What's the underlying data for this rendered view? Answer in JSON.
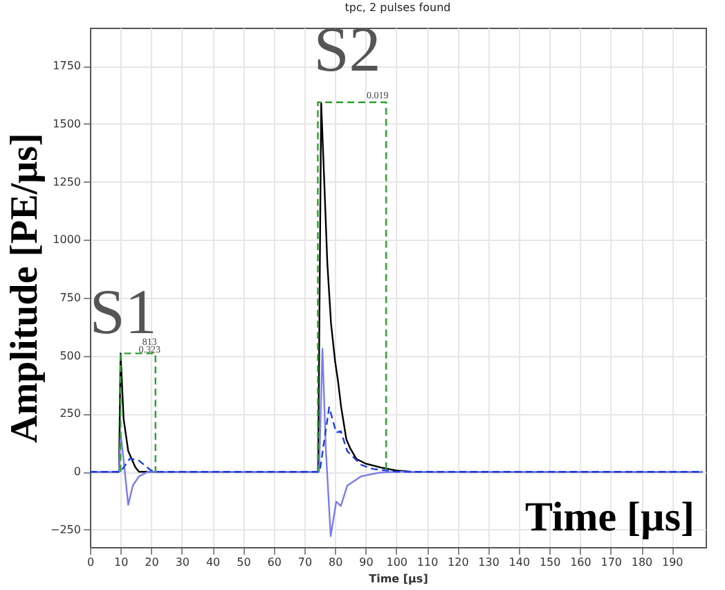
{
  "chart_data": {
    "type": "line",
    "title": "tpc, 2 pulses found",
    "xlabel": "Time [µs]",
    "ylabel": "Amplitude [PE/µs]",
    "xlim": [
      0,
      201
    ],
    "ylim": [
      -325,
      1915
    ],
    "xticks": [
      0,
      10,
      20,
      30,
      40,
      50,
      60,
      70,
      80,
      90,
      100,
      110,
      120,
      130,
      140,
      150,
      160,
      170,
      180,
      190
    ],
    "yticks": [
      -250,
      0,
      250,
      500,
      750,
      1000,
      1250,
      1500,
      1750
    ],
    "grid": true,
    "series": [
      {
        "color": "#000000",
        "x": [
          0,
          9.5,
          10,
          11,
          12.5,
          14.8,
          16,
          74.5,
          75.5,
          76.5,
          77.5,
          78.7,
          80,
          81,
          82,
          83.7,
          85,
          87,
          90,
          95,
          100,
          105,
          200
        ],
        "values": [
          0,
          0,
          510,
          228,
          89,
          20,
          0,
          0,
          1590,
          1250,
          900,
          640,
          480,
          390,
          280,
          140,
          100,
          55,
          35,
          18,
          5,
          0,
          0
        ]
      },
      {
        "color": "#7b7bf0",
        "x": [
          0,
          9.5,
          10,
          11,
          12.5,
          14,
          16,
          19,
          74.8,
          75.9,
          77,
          78.6,
          80.4,
          81.9,
          84,
          88.5,
          94.5,
          100,
          200
        ],
        "values": [
          0,
          0,
          167,
          50,
          -143,
          -60,
          -20,
          0,
          0,
          530,
          100,
          -278,
          -129,
          -148,
          -60,
          -20,
          -4,
          0,
          0
        ]
      },
      {
        "color": "#1f3fdf",
        "line_style": "dashed",
        "x": [
          0,
          10,
          13,
          15.8,
          20,
          22,
          75,
          78.1,
          80.4,
          81.9,
          84,
          88.5,
          92.3,
          100,
          200
        ],
        "values": [
          0,
          0,
          56,
          50,
          5,
          0,
          0,
          278,
          169,
          175,
          89,
          30,
          12,
          0,
          0
        ]
      },
      {
        "color": "#2ca02c",
        "line_style": "dashed",
        "x": [
          10,
          10,
          21.4,
          21.4
        ],
        "values": [
          0,
          510,
          510,
          0
        ]
      },
      {
        "color": "#2ca02c",
        "line_style": "dashed",
        "x": [
          74.4,
          74.4,
          96.7,
          96.7
        ],
        "values": [
          0,
          1593,
          1593,
          0
        ]
      }
    ],
    "annotations": [
      "S1",
      "S2",
      "813",
      "0.323",
      "0.019",
      "Time [µs]"
    ]
  }
}
